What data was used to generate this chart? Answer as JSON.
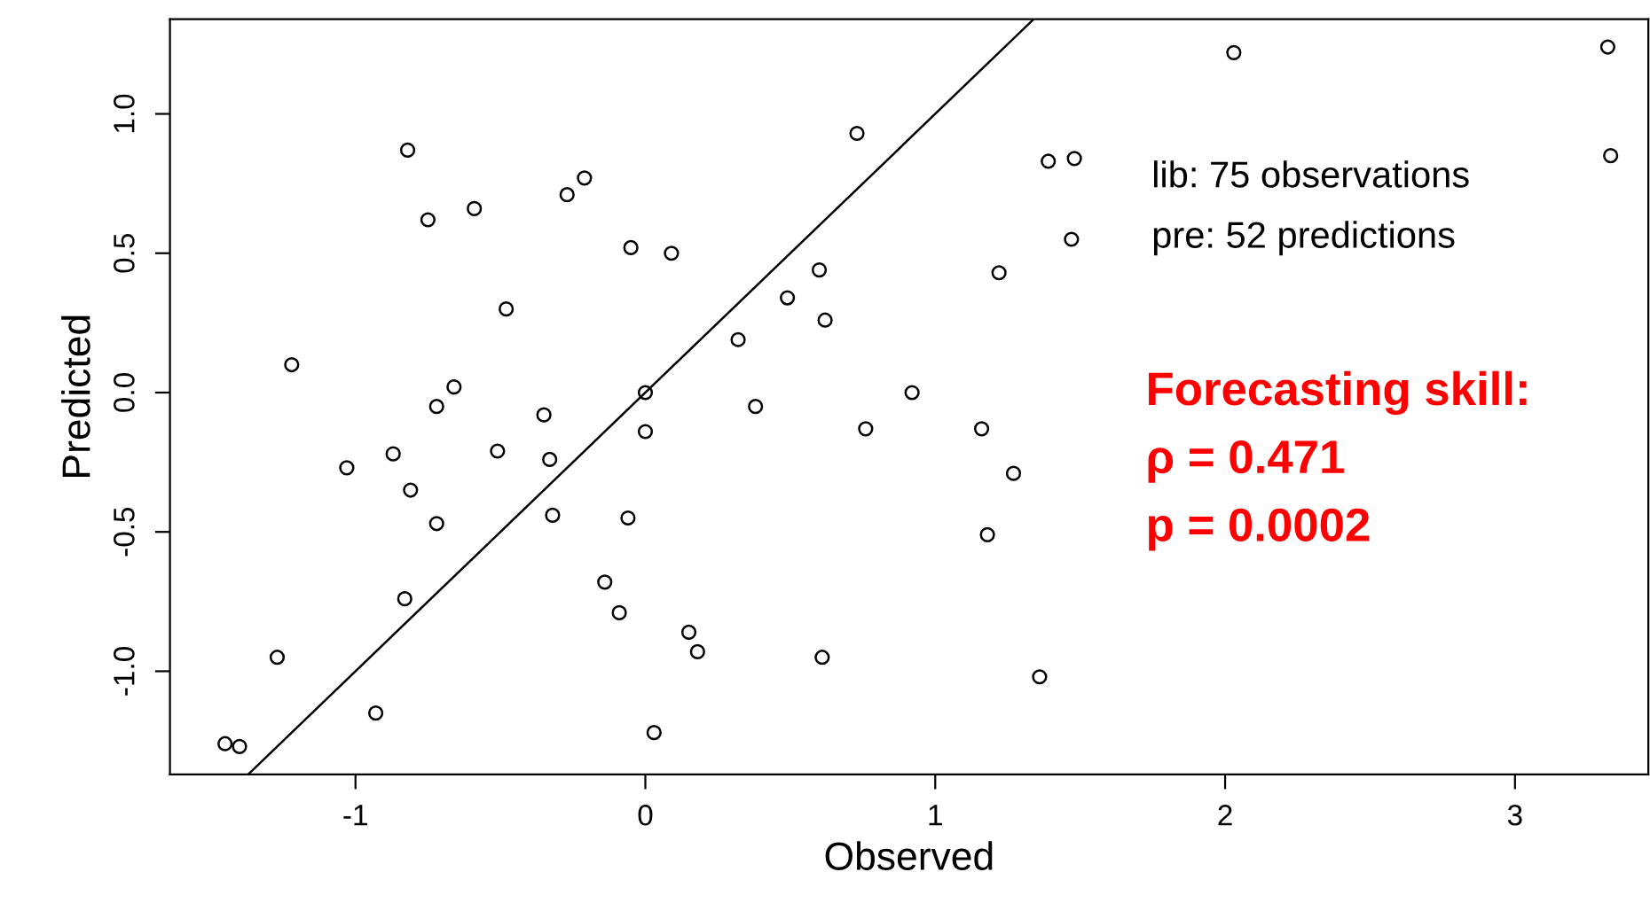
{
  "chart_data": {
    "type": "scatter",
    "xlabel": "Observed",
    "ylabel": "Predicted",
    "xlim": [
      -1.64,
      3.46
    ],
    "ylim": [
      -1.37,
      1.34
    ],
    "xticks": [
      -1,
      0,
      1,
      2,
      3
    ],
    "yticks": [
      {
        "value": -1,
        "label": "-1.0"
      },
      {
        "value": -0.5,
        "label": "-0.5"
      },
      {
        "value": 0,
        "label": "0.0"
      },
      {
        "value": 0.5,
        "label": "0.5"
      },
      {
        "value": 1,
        "label": "1.0"
      }
    ],
    "grid": false,
    "marker": "circle",
    "series": [
      {
        "color": "#000000",
        "x": [
          -0.82,
          -0.21,
          -0.27,
          -0.59,
          -0.75,
          -0.05,
          0.09,
          -0.48,
          -1.22,
          -0.66,
          0.0,
          -0.72,
          -0.35,
          0.0,
          -0.51,
          -0.87,
          -0.33,
          -1.03,
          -0.81,
          -0.72,
          -0.32,
          -0.06,
          -0.14,
          -0.09,
          -0.83,
          -1.27,
          -0.93,
          0.03,
          -1.45,
          -1.4,
          0.73,
          1.39,
          1.48,
          1.47,
          1.22,
          0.6,
          0.49,
          0.62,
          0.32,
          0.38,
          0.76,
          0.92,
          1.16,
          1.27,
          1.18,
          0.15,
          0.18,
          0.61,
          1.36,
          2.03,
          3.32,
          3.33
        ],
        "values": [
          0.87,
          0.77,
          0.71,
          0.66,
          0.62,
          0.52,
          0.5,
          0.3,
          0.1,
          0.02,
          0.0,
          -0.05,
          -0.08,
          -0.14,
          -0.21,
          -0.22,
          -0.24,
          -0.27,
          -0.35,
          -0.47,
          -0.44,
          -0.45,
          -0.68,
          -0.79,
          -0.74,
          -0.95,
          -1.15,
          -1.22,
          -1.26,
          -1.27,
          0.93,
          0.83,
          0.84,
          0.55,
          0.43,
          0.44,
          0.34,
          0.26,
          0.19,
          -0.05,
          -0.13,
          0.0,
          -0.13,
          -0.29,
          -0.51,
          -0.86,
          -0.93,
          -0.95,
          -1.02,
          1.22,
          1.24,
          0.85
        ]
      },
      {
        "type": "line",
        "color": "#000000",
        "x": [
          -1.37,
          1.34
        ],
        "values": [
          -1.37,
          1.34
        ],
        "marker": "none",
        "line_style": "solid"
      }
    ],
    "annotations": [
      "lib: 75 observations",
      "pre: 52 predictions",
      "Forecasting skill:",
      "ρ = 0.471",
      "p = 0.0002"
    ]
  }
}
